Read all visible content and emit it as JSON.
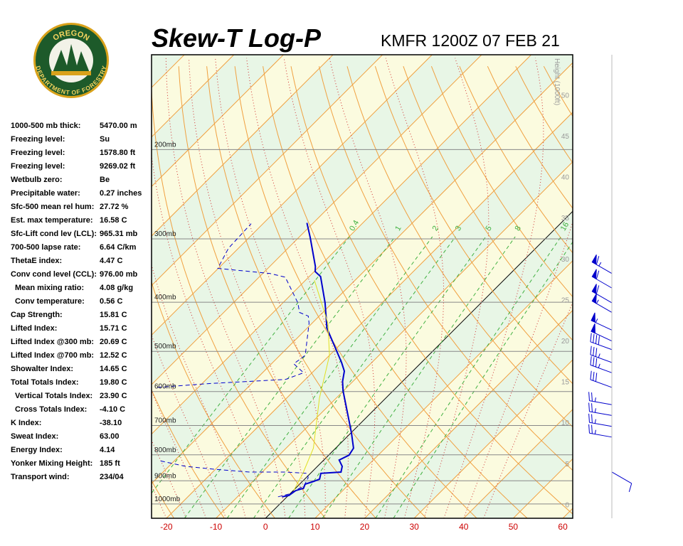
{
  "logo": {
    "top": "OREGON",
    "bottom": "DEPARTMENT OF FORESTRY"
  },
  "stats": [
    {
      "label": "1000-500 mb thick:",
      "value": "5470.00 m"
    },
    {
      "label": "Freezing level:",
      "value": "Su"
    },
    {
      "label": "Freezing level:",
      "value": "1578.80 ft"
    },
    {
      "label": "Freezing level:",
      "value": "9269.02 ft"
    },
    {
      "label": "Wetbulb zero:",
      "value": "Be"
    },
    {
      "label": "Precipitable water:",
      "value": "0.27 inches"
    },
    {
      "label": "Sfc-500 mean rel hum:",
      "value": "27.72 %"
    },
    {
      "label": "Est. max temperature:",
      "value": "16.58 C"
    },
    {
      "label": "Sfc-Lift cond lev (LCL):",
      "value": "965.31 mb"
    },
    {
      "label": "700-500 lapse rate:",
      "value": "6.64 C/km"
    },
    {
      "label": "ThetaE index:",
      "value": "4.47 C"
    },
    {
      "label": "Conv cond level (CCL):",
      "value": "976.00 mb"
    },
    {
      "label": "Mean mixing ratio:",
      "value": "4.08 g/kg",
      "indent": true
    },
    {
      "label": "Conv temperature:",
      "value": "0.56 C",
      "indent": true
    },
    {
      "label": "Cap Strength:",
      "value": "15.81 C"
    },
    {
      "label": "Lifted Index:",
      "value": "15.71 C"
    },
    {
      "label": "Lifted Index @300 mb:",
      "value": "20.69 C"
    },
    {
      "label": "Lifted Index @700 mb:",
      "value": "12.52 C"
    },
    {
      "label": "Showalter Index:",
      "value": "14.65 C"
    },
    {
      "label": "Total Totals Index:",
      "value": "19.80 C"
    },
    {
      "label": "Vertical Totals Index:",
      "value": "23.90 C",
      "indent": true
    },
    {
      "label": "Cross Totals Index:",
      "value": "-4.10 C",
      "indent": true
    },
    {
      "label": "K Index:",
      "value": "-38.10"
    },
    {
      "label": "Sweat Index:",
      "value": "63.00"
    },
    {
      "label": "Energy Index:",
      "value": "4.14"
    },
    {
      "label": "Yonker Mixing Height:",
      "value": "185 ft"
    },
    {
      "label": "Transport wind:",
      "value": "234/04"
    }
  ],
  "chart_data": {
    "type": "skewt",
    "title": "Skew-T Log-P",
    "subtitle": "KMFR 1200Z 07 FEB 21",
    "xlim": [
      -23,
      62
    ],
    "xticks": [
      -20,
      -10,
      0,
      10,
      20,
      30,
      40,
      50,
      60
    ],
    "xtick_color": "#cc0000",
    "ylim": [
      1067,
      130
    ],
    "log_y": true,
    "yticks": [
      {
        "value": 200,
        "label": "200mb"
      },
      {
        "value": 300,
        "label": "300mb"
      },
      {
        "value": 400,
        "label": "400mb"
      },
      {
        "value": 500,
        "label": "500mb"
      },
      {
        "value": 600,
        "label": "600mb"
      },
      {
        "value": 700,
        "label": "700mb"
      },
      {
        "value": 800,
        "label": "800mb"
      },
      {
        "value": 900,
        "label": "900mb"
      },
      {
        "value": 1000,
        "label": "1000mb"
      }
    ],
    "y2lim": [
      -1.7,
      54.9
    ],
    "y2ticks": [
      0,
      5,
      10,
      15,
      20,
      25,
      30,
      35,
      40,
      45,
      50
    ],
    "y2label": "Height (1000ft)",
    "mixing_ratios": [
      0.4,
      1,
      2,
      3,
      5,
      8,
      16,
      20
    ],
    "band_colors": [
      "#e8f6e6",
      "#fbfbdf"
    ],
    "isotherm_color": "#f0a040",
    "moist_color": "#d03030",
    "mixing_color": "#40b040",
    "series": [
      {
        "color": "#0000cc",
        "style": "solid",
        "width": 2,
        "values": [
          968,
          962,
          941,
          931,
          914,
          902,
          893,
          870,
          865,
          843,
          819,
          801,
          776,
          724,
          598,
          573,
          547,
          526,
          450,
          401,
          356,
          348,
          340,
          298,
          279
        ],
        "x": [
          -1.0,
          0.1,
          0.5,
          1.6,
          1.1,
          2.3,
          3.0,
          2.1,
          5.9,
          5.0,
          3.1,
          4.1,
          3.6,
          0.1,
          -10.1,
          -12.1,
          -13.8,
          -16.1,
          -26.0,
          -31.5,
          -37.7,
          -39.8,
          -40.8,
          -47.7,
          -51.3
        ]
      },
      {
        "color": "#0000cc",
        "style": "dashed",
        "width": 1,
        "values": [
          968,
          956,
          920,
          887,
          870,
          865,
          865,
          854,
          843,
          821,
          null,
          589,
          579,
          568,
          551,
          529,
          509,
          440,
          426,
          419,
          401,
          357,
          351,
          343,
          313,
          280
        ],
        "x": [
          -1.8,
          -0.2,
          1.2,
          0.4,
          -0.7,
          -5.3,
          -12.5,
          -20.3,
          -26.6,
          -33.2,
          null,
          -48.3,
          -39.0,
          -24.0,
          -21.7,
          -25.5,
          -24.9,
          -30.6,
          -32.2,
          -34.7,
          -37.0,
          -44.7,
          -48.6,
          -60.1,
          -62.0,
          -62.4
        ]
      },
      {
        "color": "#e0e020",
        "style": "solid",
        "width": 1,
        "values": [
          941,
          868,
          776,
          618,
          509,
          440,
          362
        ],
        "x": [
          0.1,
          -1.6,
          -4.5,
          -13.4,
          -20.0,
          -26.8,
          -38.2
        ]
      }
    ],
    "winds": {
      "color": "#0000cc",
      "pressure": [
        351,
        375,
        401,
        419,
        454,
        477,
        496,
        526,
        551,
        589,
        637,
        669,
        703,
        738,
        865
      ],
      "direction": [
        300,
        300,
        300,
        300,
        295,
        295,
        290,
        290,
        290,
        290,
        280,
        280,
        280,
        280,
        120
      ],
      "speed": [
        65,
        60,
        60,
        55,
        55,
        50,
        40,
        35,
        35,
        30,
        25,
        25,
        25,
        25,
        10
      ]
    }
  }
}
